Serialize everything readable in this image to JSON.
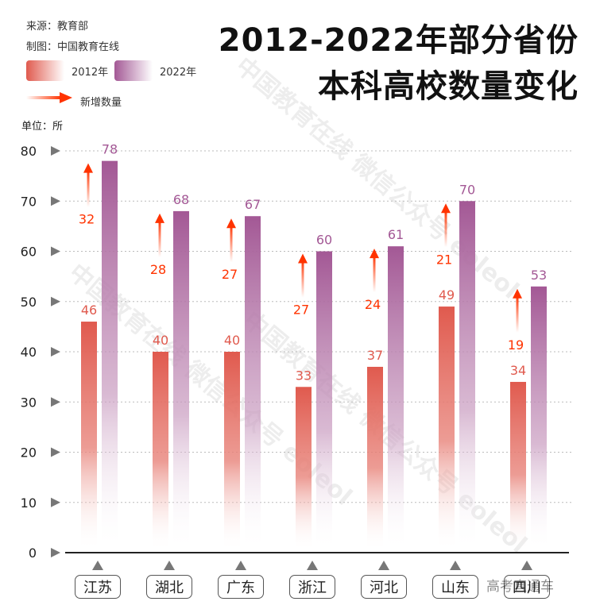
{
  "source": "来源：教育部",
  "credit": "制图：中国教育在线",
  "title_line1": "2012-2022年部分省份",
  "title_line2": "本科高校数量变化",
  "watermark": "中国教育在线 微信公众号 eoleol",
  "corner_watermark": "高考直通车",
  "chart_data": {
    "type": "bar",
    "title": "2012-2022年部分省份本科高校数量变化",
    "unit_label": "单位：所",
    "categories": [
      "江苏",
      "湖北",
      "广东",
      "浙江",
      "河北",
      "山东",
      "四川"
    ],
    "series": [
      {
        "name": "2012年",
        "values": [
          46,
          40,
          40,
          33,
          37,
          49,
          34
        ],
        "color": "#e05a4e"
      },
      {
        "name": "2022年",
        "values": [
          78,
          68,
          67,
          60,
          61,
          70,
          53
        ],
        "color": "#a35895"
      }
    ],
    "increase": {
      "name": "新增数量",
      "values": [
        32,
        28,
        27,
        27,
        24,
        21,
        19
      ],
      "color": "#ff3300"
    },
    "yticks": [
      0,
      10,
      20,
      30,
      40,
      50,
      60,
      70,
      80
    ],
    "ylim": [
      0,
      80
    ],
    "grid": true,
    "legend": "top-left"
  }
}
